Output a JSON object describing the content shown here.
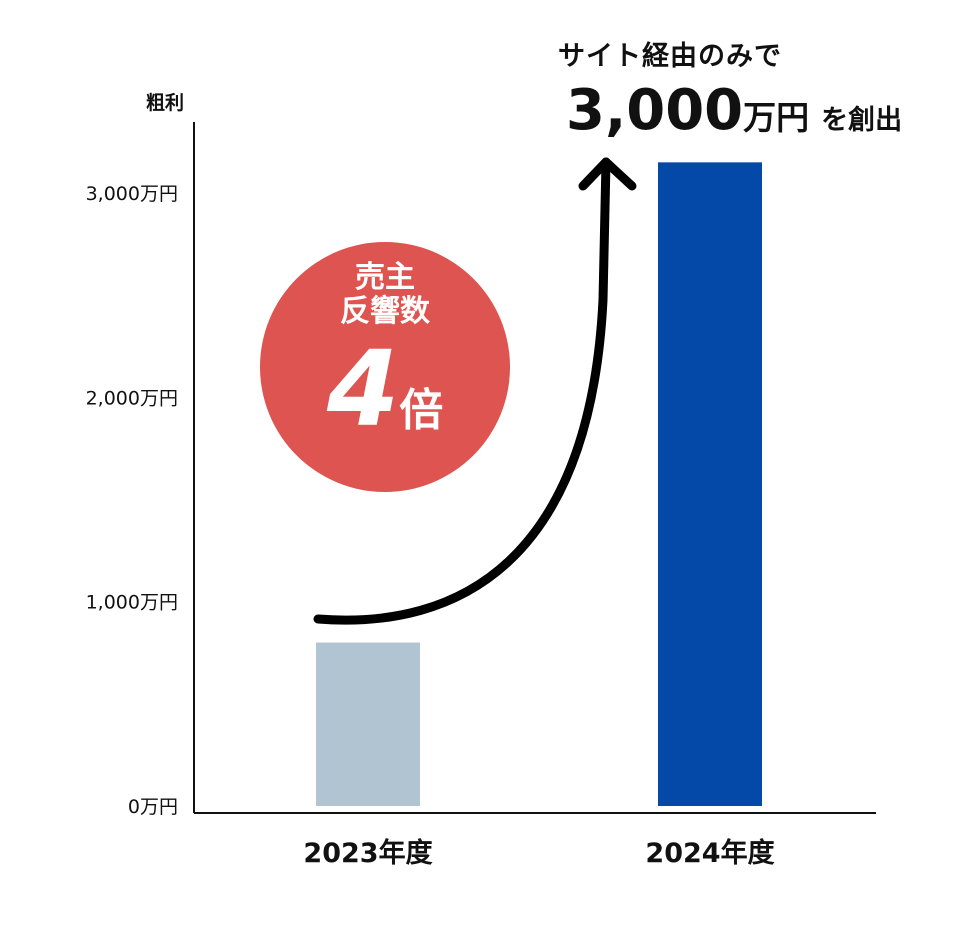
{
  "chart_data": {
    "type": "bar",
    "ylabel": "粗利",
    "categories": [
      "2023年度",
      "2024年度"
    ],
    "values": [
      800,
      3150
    ],
    "ylim": [
      0,
      3000
    ],
    "yticks": [
      0,
      1000,
      2000,
      3000
    ],
    "ytick_labels": [
      "0万円",
      "1,000万円",
      "2,000万円",
      "3,000万円"
    ],
    "bar_colors": [
      "#b0c4d2",
      "#0448a8"
    ],
    "grid": false,
    "annotations": {
      "headline_top": "サイト経由のみで",
      "headline_value": "3,000",
      "headline_unit": "万円",
      "headline_tail": "を創出",
      "badge_line1": "売主",
      "badge_line2": "反響数",
      "badge_number": "4",
      "badge_suffix": "倍",
      "badge_color": "#dd5450"
    }
  }
}
